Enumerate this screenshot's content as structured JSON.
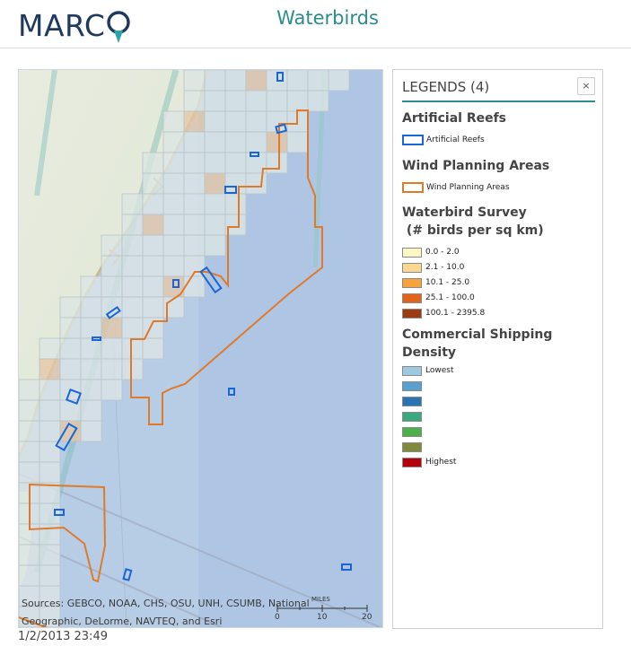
{
  "header": {
    "logo_text": "MARC",
    "title": "Waterbirds"
  },
  "map": {
    "attribution_line1": "Sources: GEBCO, NOAA, CHS, OSU, UNH, CSUMB, National",
    "attribution_line2": "Geographic, DeLorme, NAVTEQ, and Esri",
    "scale_unit": "MILES",
    "scale_ticks": [
      "0",
      "10",
      "20"
    ],
    "colors": {
      "ocean": "#b9cfe7",
      "land": "#e4e9dc",
      "grid_cell": "#dfe7e7",
      "reef_outline": "#1a66d6",
      "wind_outline": "#e07a2b"
    }
  },
  "timestamp": "1/2/2013 23:49",
  "legend": {
    "title": "LEGENDS (4)",
    "close_label": "×",
    "sections": {
      "reefs": {
        "heading": "Artificial Reefs",
        "item": "Artificial Reefs",
        "color": "#1a66d6"
      },
      "wind": {
        "heading": "Wind Planning Areas",
        "item": "Wind Planning Areas",
        "color": "#e07a2b"
      },
      "survey": {
        "heading_line1": "Waterbird Survey",
        "heading_line2": " (# birds per sq km)",
        "classes": [
          {
            "label": "0.0 - 2.0",
            "color": "#fdf7c4"
          },
          {
            "label": "2.1 - 10.0",
            "color": "#fbd88f"
          },
          {
            "label": "10.1 - 25.0",
            "color": "#f7a23c"
          },
          {
            "label": "25.1 - 100.0",
            "color": "#e2631a"
          },
          {
            "label": "100.1 - 2395.8",
            "color": "#9c3a10"
          }
        ]
      },
      "shipping": {
        "heading_line1": "Commercial Shipping",
        "heading_line2": "Density",
        "classes": [
          {
            "label": "Lowest",
            "color": "#9ecae1"
          },
          {
            "label": "",
            "color": "#5aa0cf"
          },
          {
            "label": "",
            "color": "#2b73b3"
          },
          {
            "label": "",
            "color": "#3aa880"
          },
          {
            "label": "",
            "color": "#4db04a"
          },
          {
            "label": "",
            "color": "#7f8a3c"
          },
          {
            "label": "Highest",
            "color": "#b3000c"
          }
        ]
      }
    }
  }
}
